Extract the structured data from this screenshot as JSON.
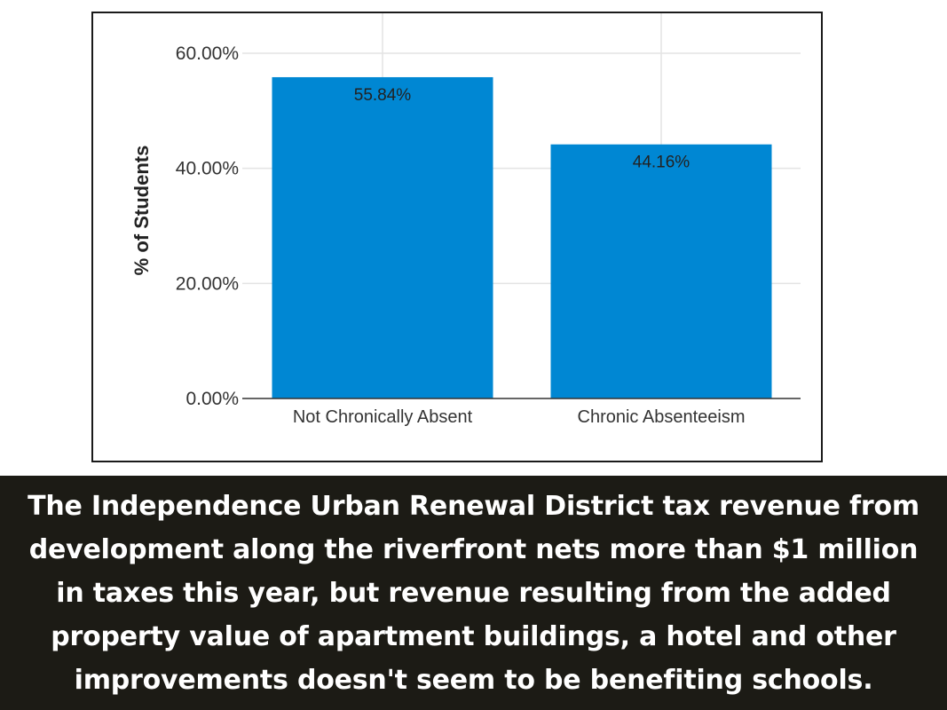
{
  "chart_data": {
    "type": "bar",
    "categories": [
      "Not Chronically Absent",
      "Chronic Absenteeism"
    ],
    "values": [
      55.84,
      44.16
    ],
    "data_labels": [
      "55.84%",
      "44.16%"
    ],
    "title": "",
    "xlabel": "",
    "ylabel": "% of Students",
    "ylim": [
      0,
      60
    ],
    "yticks": [
      0,
      20,
      40,
      60
    ],
    "ytick_labels": [
      "0.00%",
      "20.00%",
      "40.00%",
      "60.00%"
    ],
    "grid": true,
    "bar_color": "#0087d3",
    "grid_color": "#e3e3e3",
    "axis_color": "#333333"
  },
  "caption": {
    "text": "The Independence Urban Renewal District tax revenue from development along the riverfront nets more than $1 million in taxes this year, but revenue resulting from the added property value of apartment buildings, a hotel and other improvements doesn't seem to be benefiting schools.",
    "background": "#1c1b15",
    "color": "#ffffff"
  }
}
